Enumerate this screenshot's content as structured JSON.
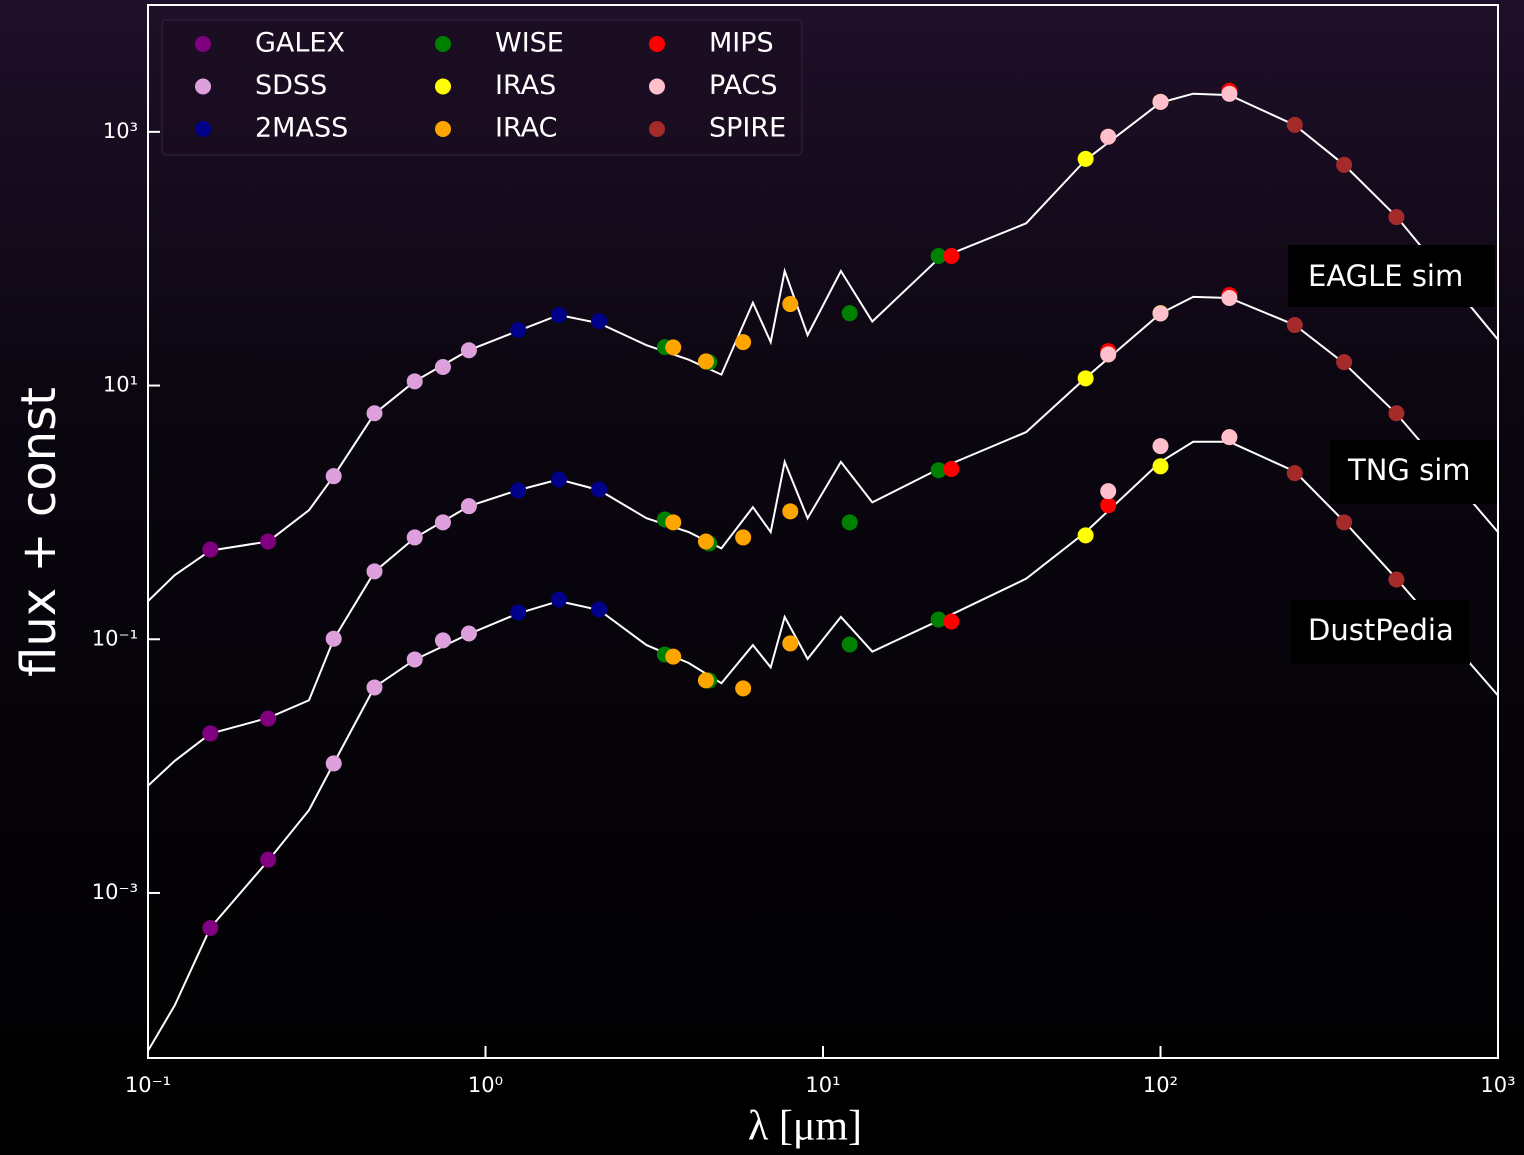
{
  "chart_data": {
    "type": "scatter",
    "xlabel": "λ [μm]",
    "ylabel": "flux + const",
    "log_x": true,
    "log_y": true,
    "xlim": [
      0.1,
      1000
    ],
    "ylim": [
      5e-05,
      10000
    ],
    "xticks": [
      {
        "value": 0.1,
        "label": "10⁻¹"
      },
      {
        "value": 1,
        "label": "10⁰"
      },
      {
        "value": 10,
        "label": "10¹"
      },
      {
        "value": 100,
        "label": "10²"
      },
      {
        "value": 1000,
        "label": "10³"
      }
    ],
    "yticks": [
      {
        "value": 0.001,
        "label": "10⁻³"
      },
      {
        "value": 0.1,
        "label": "10⁻¹"
      },
      {
        "value": 10,
        "label": "10¹"
      },
      {
        "value": 1000,
        "label": "10³"
      }
    ],
    "legend": "upper left",
    "series": [
      {
        "name": "GALEX",
        "color": "#800080",
        "x": [
          0.153,
          0.227,
          0.153,
          0.227,
          0.153,
          0.227
        ],
        "values": [
          0.51,
          0.59,
          0.0181,
          0.0237,
          0.00053,
          0.00183
        ]
      },
      {
        "name": "SDSS",
        "color": "#dda0dd",
        "x": [
          0.355,
          0.469,
          0.617,
          0.748,
          0.893,
          0.355,
          0.469,
          0.617,
          0.748,
          0.893,
          0.355,
          0.469,
          0.617,
          0.748,
          0.893
        ],
        "values": [
          1.93,
          6.05,
          10.8,
          14.0,
          19,
          0.101,
          0.343,
          0.635,
          0.835,
          1.12,
          0.0105,
          0.0417,
          0.0693,
          0.098,
          0.111
        ]
      },
      {
        "name": "2MASS",
        "color": "#00008b",
        "x": [
          1.25,
          1.65,
          2.17,
          1.25,
          1.65,
          2.17,
          1.25,
          1.65,
          2.17
        ],
        "values": [
          27.4,
          36,
          32.2,
          1.49,
          1.82,
          1.52,
          0.163,
          0.206,
          0.172
        ]
      },
      {
        "name": "WISE",
        "color": "#008000",
        "x": [
          3.4,
          4.6,
          12,
          22,
          3.4,
          4.6,
          12,
          22,
          3.4,
          4.6,
          12,
          22
        ],
        "values": [
          20.1,
          15.3,
          37.2,
          105,
          0.88,
          0.57,
          0.835,
          2.15,
          0.0759,
          0.0473,
          0.091,
          0.143
        ]
      },
      {
        "name": "IRAS",
        "color": "#ffff00",
        "x": [
          60,
          100,
          60,
          100,
          60,
          100
        ],
        "values": [
          612,
          1725,
          11.4,
          37.2,
          0.659,
          2.31
        ]
      },
      {
        "name": "IRAC",
        "color": "#ffa500",
        "x": [
          3.6,
          4.5,
          5.8,
          8.0,
          3.6,
          4.5,
          5.8,
          8.0,
          3.6,
          4.5,
          5.8,
          8.0
        ],
        "values": [
          20,
          15.5,
          22,
          43.9,
          0.835,
          0.59,
          0.635,
          1.02,
          0.073,
          0.0474,
          0.041,
          0.0927
        ]
      },
      {
        "name": "MIPS",
        "color": "#ff0000",
        "x": [
          24,
          70,
          160,
          24,
          70,
          160,
          24,
          70,
          160
        ],
        "values": [
          105,
          915,
          2110,
          2.2,
          18.7,
          51.7,
          0.138,
          1.14,
          3.92
        ]
      },
      {
        "name": "PACS",
        "color": "#ffc0cb",
        "x": [
          70,
          100,
          160,
          70,
          100,
          160,
          70,
          100,
          160
        ],
        "values": [
          915,
          1725,
          1995,
          17.6,
          37,
          49,
          1.47,
          3.33,
          3.92
        ]
      },
      {
        "name": "SPIRE",
        "color": "#a52a2a",
        "x": [
          250,
          350,
          500,
          250,
          350,
          500,
          250,
          350,
          500
        ],
        "values": [
          1135,
          550,
          213,
          30,
          15.3,
          6.05,
          2.04,
          0.835,
          0.296
        ]
      }
    ],
    "curve_x": [
      0.1,
      0.12,
      0.153,
      0.227,
      0.3,
      0.355,
      0.469,
      0.617,
      0.893,
      1.25,
      1.65,
      2.17,
      3.0,
      4.0,
      5.0,
      6.2,
      7.0,
      7.7,
      9,
      11.3,
      14,
      22,
      40,
      60,
      100,
      125,
      160,
      250,
      350,
      500,
      1000
    ],
    "curves": [
      {
        "name": "EAGLE sim",
        "color": "#ffffff",
        "values": [
          0.2,
          0.32,
          0.5,
          0.59,
          1.04,
          1.93,
          6,
          10.8,
          19,
          27,
          36,
          31,
          20.8,
          16,
          12.2,
          45,
          22,
          80,
          25,
          80,
          32,
          100,
          190,
          600,
          1700,
          2000,
          1950,
          1130,
          550,
          215,
          23
        ]
      },
      {
        "name": "TNG sim",
        "color": "#ffffff",
        "values": [
          0.007,
          0.011,
          0.018,
          0.024,
          0.033,
          0.1,
          0.34,
          0.63,
          1.12,
          1.5,
          1.82,
          1.5,
          0.9,
          0.7,
          0.52,
          1.1,
          0.7,
          2.5,
          0.9,
          2.5,
          1.2,
          2.2,
          4.3,
          11.5,
          37,
          50,
          49,
          30,
          15,
          6,
          0.7
        ]
      },
      {
        "name": "DustPedia",
        "color": "#ffffff",
        "values": [
          5.7e-05,
          0.00013,
          0.00053,
          0.0018,
          0.0045,
          0.0105,
          0.042,
          0.069,
          0.11,
          0.16,
          0.2,
          0.17,
          0.09,
          0.065,
          0.045,
          0.09,
          0.06,
          0.15,
          0.07,
          0.15,
          0.08,
          0.14,
          0.3,
          0.7,
          2.5,
          3.6,
          3.6,
          2.1,
          0.85,
          0.3,
          0.036
        ]
      }
    ]
  }
}
